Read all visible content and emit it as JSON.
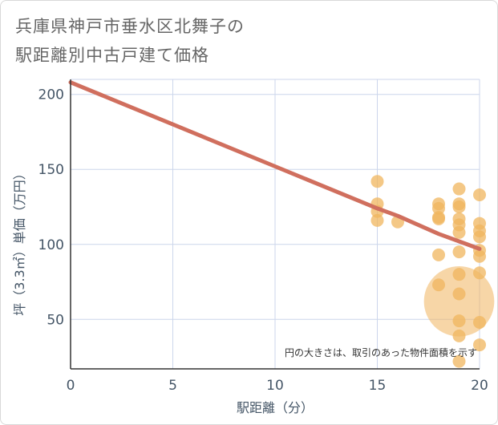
{
  "page": {
    "title_line1": "兵庫県神戸市垂水区北舞子の",
    "title_line2": "駅距離別中古戸建て価格"
  },
  "chart_data": {
    "type": "scatter",
    "title": "兵庫県神戸市垂水区北舞子の駅距離別中古戸建て価格",
    "xlabel": "駅距離（分）",
    "ylabel": "坪（3.3㎡）単価（万円）",
    "xlim": [
      0,
      20
    ],
    "ylim": [
      17,
      210
    ],
    "xticks": [
      0,
      5,
      10,
      15,
      20
    ],
    "yticks": [
      50,
      100,
      150,
      200
    ],
    "grid": true,
    "annotation": "円の大きさは、取引のあった物件面積を示す",
    "colors": {
      "points": "#f0b55e",
      "trend": "#d06f5e",
      "grid": "#ccd6eb",
      "axis_text": "#445566"
    },
    "points": [
      {
        "x": 15,
        "y": 142,
        "size": 1
      },
      {
        "x": 15,
        "y": 127,
        "size": 1
      },
      {
        "x": 15,
        "y": 122,
        "size": 1
      },
      {
        "x": 15,
        "y": 116,
        "size": 1
      },
      {
        "x": 16,
        "y": 115,
        "size": 1
      },
      {
        "x": 18,
        "y": 127,
        "size": 1
      },
      {
        "x": 18,
        "y": 124,
        "size": 1
      },
      {
        "x": 18,
        "y": 118,
        "size": 1
      },
      {
        "x": 18,
        "y": 117,
        "size": 1
      },
      {
        "x": 18,
        "y": 93,
        "size": 1
      },
      {
        "x": 18,
        "y": 73,
        "size": 1
      },
      {
        "x": 19,
        "y": 137,
        "size": 1
      },
      {
        "x": 19,
        "y": 127,
        "size": 1
      },
      {
        "x": 19,
        "y": 125,
        "size": 1
      },
      {
        "x": 19,
        "y": 117,
        "size": 1
      },
      {
        "x": 19,
        "y": 113,
        "size": 1
      },
      {
        "x": 19,
        "y": 108,
        "size": 1
      },
      {
        "x": 19,
        "y": 95,
        "size": 1
      },
      {
        "x": 19,
        "y": 80,
        "size": 1
      },
      {
        "x": 19,
        "y": 67,
        "size": 1
      },
      {
        "x": 19,
        "y": 62,
        "size": 30
      },
      {
        "x": 19,
        "y": 49,
        "size": 1
      },
      {
        "x": 19,
        "y": 39,
        "size": 1
      },
      {
        "x": 19,
        "y": 22,
        "size": 1
      },
      {
        "x": 20,
        "y": 133,
        "size": 1
      },
      {
        "x": 20,
        "y": 114,
        "size": 1
      },
      {
        "x": 20,
        "y": 109,
        "size": 1
      },
      {
        "x": 20,
        "y": 105,
        "size": 1
      },
      {
        "x": 20,
        "y": 96,
        "size": 1
      },
      {
        "x": 20,
        "y": 92,
        "size": 1
      },
      {
        "x": 20,
        "y": 81,
        "size": 1
      },
      {
        "x": 20,
        "y": 48,
        "size": 1
      },
      {
        "x": 20,
        "y": 33,
        "size": 1
      }
    ],
    "trend": {
      "name": "trend line",
      "x": [
        0,
        5,
        10,
        15,
        16,
        17,
        18,
        19,
        20
      ],
      "y": [
        208,
        180,
        152,
        124,
        119,
        113,
        107,
        102,
        97
      ]
    }
  }
}
